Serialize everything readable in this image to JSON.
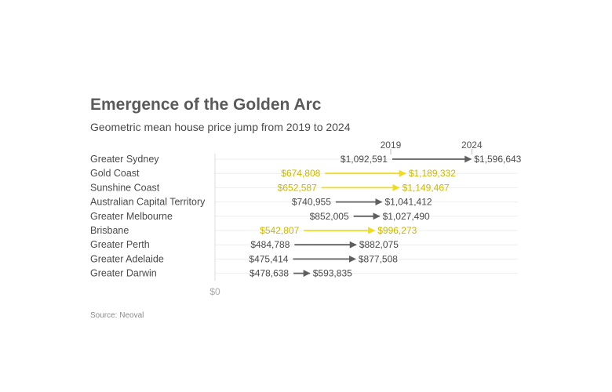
{
  "title": "Emergence of the Golden Arc",
  "subtitle": "Geometric mean house price jump from 2019 to 2024",
  "source": "Source: Neoval",
  "colors": {
    "highlight": "#f0dc1e",
    "highlight_text": "#c9b800",
    "default": "#5f5f5f",
    "default_text": "#4a4a4a",
    "grid": "#eeeeee"
  },
  "chart_data": {
    "type": "dumbbell-arrow",
    "x_tick_label": "$0",
    "series_labels": [
      "2019",
      "2024"
    ],
    "series": [
      {
        "name": "2019",
        "values": [
          1092591,
          674808,
          652587,
          740955,
          852005,
          542807,
          484788,
          475414,
          478638
        ]
      },
      {
        "name": "2024",
        "values": [
          1596643,
          1189332,
          1149467,
          1041412,
          1027490,
          996273,
          882075,
          877508,
          593835
        ]
      }
    ],
    "categories": [
      "Greater Sydney",
      "Gold Coast",
      "Sunshine Coast",
      "Australian Capital Territory",
      "Greater Melbourne",
      "Brisbane",
      "Greater Perth",
      "Greater Adelaide",
      "Greater Darwin"
    ],
    "value_labels_2019": [
      "$1,092,591",
      "$674,808",
      "$652,587",
      "$740,955",
      "$852,005",
      "$542,807",
      "$484,788",
      "$475,414",
      "$478,638"
    ],
    "value_labels_2024": [
      "$1,596,643",
      "$1,189,332",
      "$1,149,467",
      "$1,041,412",
      "$1,027,490",
      "$996,273",
      "$882,075",
      "$877,508",
      "$593,835"
    ],
    "highlighted": [
      false,
      true,
      true,
      false,
      false,
      true,
      false,
      false,
      false
    ],
    "grid": true
  }
}
